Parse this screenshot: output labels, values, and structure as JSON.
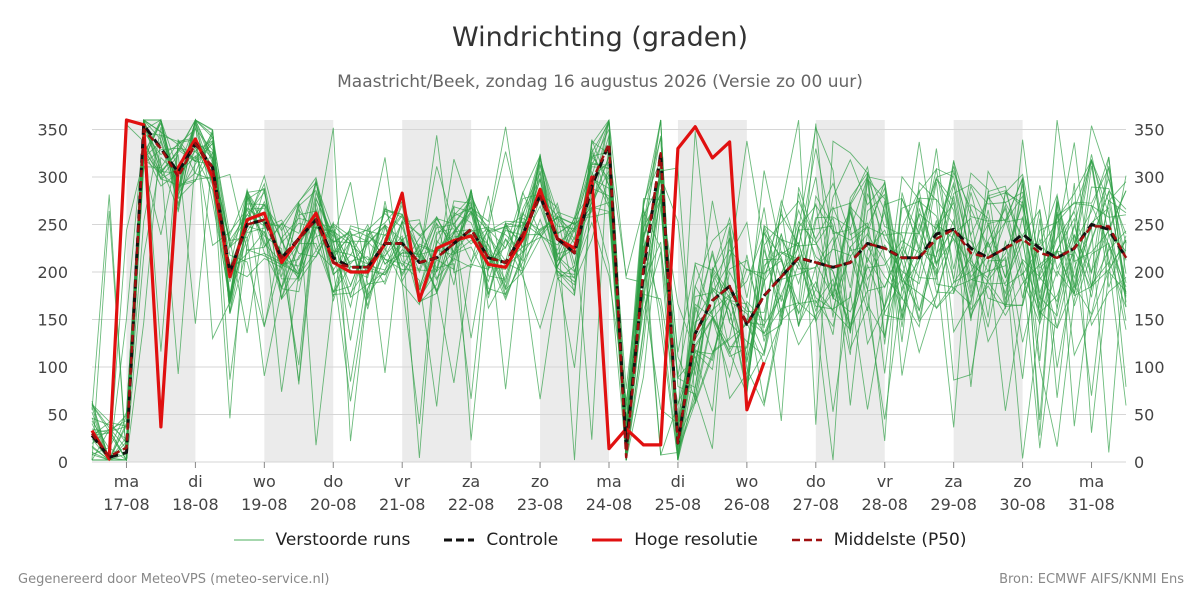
{
  "title": "Windrichting (graden)",
  "subtitle": "Maastricht/Beek, zondag 16 augustus 2026 (Versie zo 00 uur)",
  "footer": {
    "left": "Gegenereerd door MeteoVPS (meteo-service.nl)",
    "right": "Bron: ECMWF AIFS/KNMI Ens"
  },
  "legend": [
    {
      "label": "Verstoorde runs",
      "color": "#2e9e44",
      "style": "thin"
    },
    {
      "label": "Controle",
      "color": "#111111",
      "style": "dashed"
    },
    {
      "label": "Hoge resolutie",
      "color": "#e01010",
      "style": "solid"
    },
    {
      "label": "Middelste (P50)",
      "color": "#a01010",
      "style": "dashed"
    }
  ],
  "chart_data": {
    "type": "line",
    "title": "Windrichting (graden)",
    "ylim": [
      0,
      360
    ],
    "yticks": [
      0,
      50,
      100,
      150,
      200,
      250,
      300,
      350
    ],
    "xticks": [
      {
        "day": "ma",
        "date": "17-08"
      },
      {
        "day": "di",
        "date": "18-08"
      },
      {
        "day": "wo",
        "date": "19-08"
      },
      {
        "day": "do",
        "date": "20-08"
      },
      {
        "day": "vr",
        "date": "21-08"
      },
      {
        "day": "za",
        "date": "22-08"
      },
      {
        "day": "zo",
        "date": "23-08"
      },
      {
        "day": "ma",
        "date": "24-08"
      },
      {
        "day": "di",
        "date": "25-08"
      },
      {
        "day": "wo",
        "date": "26-08"
      },
      {
        "day": "do",
        "date": "27-08"
      },
      {
        "day": "vr",
        "date": "28-08"
      },
      {
        "day": "za",
        "date": "29-08"
      },
      {
        "day": "zo",
        "date": "30-08"
      },
      {
        "day": "ma",
        "date": "31-08"
      }
    ],
    "x_start": "2026-08-16 12:00",
    "x_end": "2026-08-31 12:00",
    "grid": true,
    "shaded_days": [
      "17-08",
      "19-08",
      "21-08",
      "23-08",
      "25-08",
      "27-08",
      "29-08"
    ],
    "series": [
      {
        "name": "Hoge resolutie",
        "color": "#e01010",
        "x": [
          "2026-08-16 12:00",
          "2026-08-16 18:00",
          "2026-08-17 00:00",
          "2026-08-17 06:00",
          "2026-08-17 12:00",
          "2026-08-17 18:00",
          "2026-08-18 00:00",
          "2026-08-18 06:00",
          "2026-08-18 12:00",
          "2026-08-18 18:00",
          "2026-08-19 00:00",
          "2026-08-19 06:00",
          "2026-08-19 12:00",
          "2026-08-19 18:00",
          "2026-08-20 00:00",
          "2026-08-20 06:00",
          "2026-08-20 12:00",
          "2026-08-20 18:00",
          "2026-08-21 00:00",
          "2026-08-21 06:00",
          "2026-08-21 12:00",
          "2026-08-21 18:00",
          "2026-08-22 00:00",
          "2026-08-22 06:00",
          "2026-08-22 12:00",
          "2026-08-22 18:00",
          "2026-08-23 00:00",
          "2026-08-23 06:00",
          "2026-08-23 12:00",
          "2026-08-23 18:00",
          "2026-08-24 00:00",
          "2026-08-24 06:00",
          "2026-08-24 12:00",
          "2026-08-24 18:00",
          "2026-08-25 00:00",
          "2026-08-25 06:00",
          "2026-08-25 12:00",
          "2026-08-25 18:00",
          "2026-08-26 00:00",
          "2026-08-26 06:00"
        ],
        "values": [
          33,
          3,
          360,
          355,
          37,
          310,
          340,
          300,
          195,
          255,
          262,
          210,
          235,
          262,
          210,
          200,
          200,
          230,
          283,
          170,
          225,
          233,
          238,
          208,
          205,
          235,
          287,
          235,
          225,
          300,
          14,
          35,
          18,
          18,
          330,
          353,
          320,
          337,
          55,
          105
        ]
      },
      {
        "name": "Controle",
        "color": "#111111",
        "x": [
          "2026-08-16 12:00",
          "2026-08-16 18:00",
          "2026-08-17 00:00",
          "2026-08-17 06:00",
          "2026-08-17 12:00",
          "2026-08-17 18:00",
          "2026-08-18 00:00",
          "2026-08-18 06:00",
          "2026-08-18 12:00",
          "2026-08-18 18:00",
          "2026-08-19 00:00",
          "2026-08-19 06:00",
          "2026-08-19 12:00",
          "2026-08-19 18:00",
          "2026-08-20 00:00",
          "2026-08-20 06:00",
          "2026-08-20 12:00",
          "2026-08-20 18:00",
          "2026-08-21 00:00",
          "2026-08-21 06:00",
          "2026-08-21 12:00",
          "2026-08-21 18:00",
          "2026-08-22 00:00",
          "2026-08-22 06:00",
          "2026-08-22 12:00",
          "2026-08-22 18:00",
          "2026-08-23 00:00",
          "2026-08-23 06:00",
          "2026-08-23 12:00",
          "2026-08-23 18:00",
          "2026-08-24 00:00",
          "2026-08-24 06:00",
          "2026-08-24 12:00",
          "2026-08-24 18:00",
          "2026-08-25 00:00",
          "2026-08-25 06:00",
          "2026-08-25 12:00",
          "2026-08-25 18:00",
          "2026-08-26 00:00",
          "2026-08-26 06:00",
          "2026-08-26 12:00",
          "2026-08-26 18:00",
          "2026-08-27 00:00",
          "2026-08-27 06:00",
          "2026-08-27 12:00",
          "2026-08-27 18:00",
          "2026-08-28 00:00",
          "2026-08-28 06:00",
          "2026-08-28 12:00",
          "2026-08-28 18:00",
          "2026-08-29 00:00",
          "2026-08-29 06:00",
          "2026-08-29 12:00",
          "2026-08-29 18:00",
          "2026-08-30 00:00",
          "2026-08-30 06:00",
          "2026-08-30 12:00",
          "2026-08-30 18:00",
          "2026-08-31 00:00",
          "2026-08-31 06:00",
          "2026-08-31 12:00"
        ],
        "values": [
          28,
          5,
          10,
          355,
          330,
          305,
          335,
          310,
          200,
          250,
          255,
          215,
          235,
          255,
          215,
          205,
          205,
          230,
          230,
          210,
          215,
          230,
          245,
          215,
          210,
          240,
          280,
          235,
          220,
          290,
          335,
          15,
          200,
          325,
          20,
          135,
          170,
          185,
          145,
          175,
          195,
          215,
          210,
          205,
          210,
          230,
          225,
          215,
          215,
          240,
          245,
          225,
          215,
          225,
          240,
          225,
          215,
          225,
          250,
          245,
          215
        ]
      },
      {
        "name": "Middelste (P50)",
        "color": "#a01010",
        "x": [
          "2026-08-16 12:00",
          "2026-08-16 18:00",
          "2026-08-17 00:00",
          "2026-08-17 06:00",
          "2026-08-17 12:00",
          "2026-08-17 18:00",
          "2026-08-18 00:00",
          "2026-08-18 06:00",
          "2026-08-18 12:00",
          "2026-08-18 18:00",
          "2026-08-19 00:00",
          "2026-08-19 06:00",
          "2026-08-19 12:00",
          "2026-08-19 18:00",
          "2026-08-20 00:00",
          "2026-08-20 06:00",
          "2026-08-20 12:00",
          "2026-08-20 18:00",
          "2026-08-21 00:00",
          "2026-08-21 06:00",
          "2026-08-21 12:00",
          "2026-08-21 18:00",
          "2026-08-22 00:00",
          "2026-08-22 06:00",
          "2026-08-22 12:00",
          "2026-08-22 18:00",
          "2026-08-23 00:00",
          "2026-08-23 06:00",
          "2026-08-23 12:00",
          "2026-08-23 18:00",
          "2026-08-24 00:00",
          "2026-08-24 06:00",
          "2026-08-24 12:00",
          "2026-08-24 18:00",
          "2026-08-25 00:00",
          "2026-08-25 06:00",
          "2026-08-25 12:00",
          "2026-08-25 18:00",
          "2026-08-26 00:00",
          "2026-08-26 06:00",
          "2026-08-26 12:00",
          "2026-08-26 18:00",
          "2026-08-27 00:00",
          "2026-08-27 06:00",
          "2026-08-27 12:00",
          "2026-08-27 18:00",
          "2026-08-28 00:00",
          "2026-08-28 06:00",
          "2026-08-28 12:00",
          "2026-08-28 18:00",
          "2026-08-29 00:00",
          "2026-08-29 06:00",
          "2026-08-29 12:00",
          "2026-08-29 18:00",
          "2026-08-30 00:00",
          "2026-08-30 06:00",
          "2026-08-30 12:00",
          "2026-08-30 18:00",
          "2026-08-31 00:00",
          "2026-08-31 06:00",
          "2026-08-31 12:00"
        ],
        "values": [
          30,
          6,
          15,
          350,
          330,
          300,
          335,
          310,
          200,
          250,
          255,
          215,
          235,
          255,
          210,
          205,
          205,
          230,
          230,
          210,
          215,
          230,
          245,
          215,
          210,
          240,
          280,
          235,
          220,
          295,
          335,
          5,
          205,
          325,
          20,
          135,
          170,
          185,
          145,
          175,
          195,
          215,
          210,
          205,
          210,
          230,
          225,
          215,
          215,
          235,
          245,
          220,
          215,
          225,
          235,
          220,
          215,
          225,
          248,
          248,
          215
        ]
      }
    ]
  }
}
